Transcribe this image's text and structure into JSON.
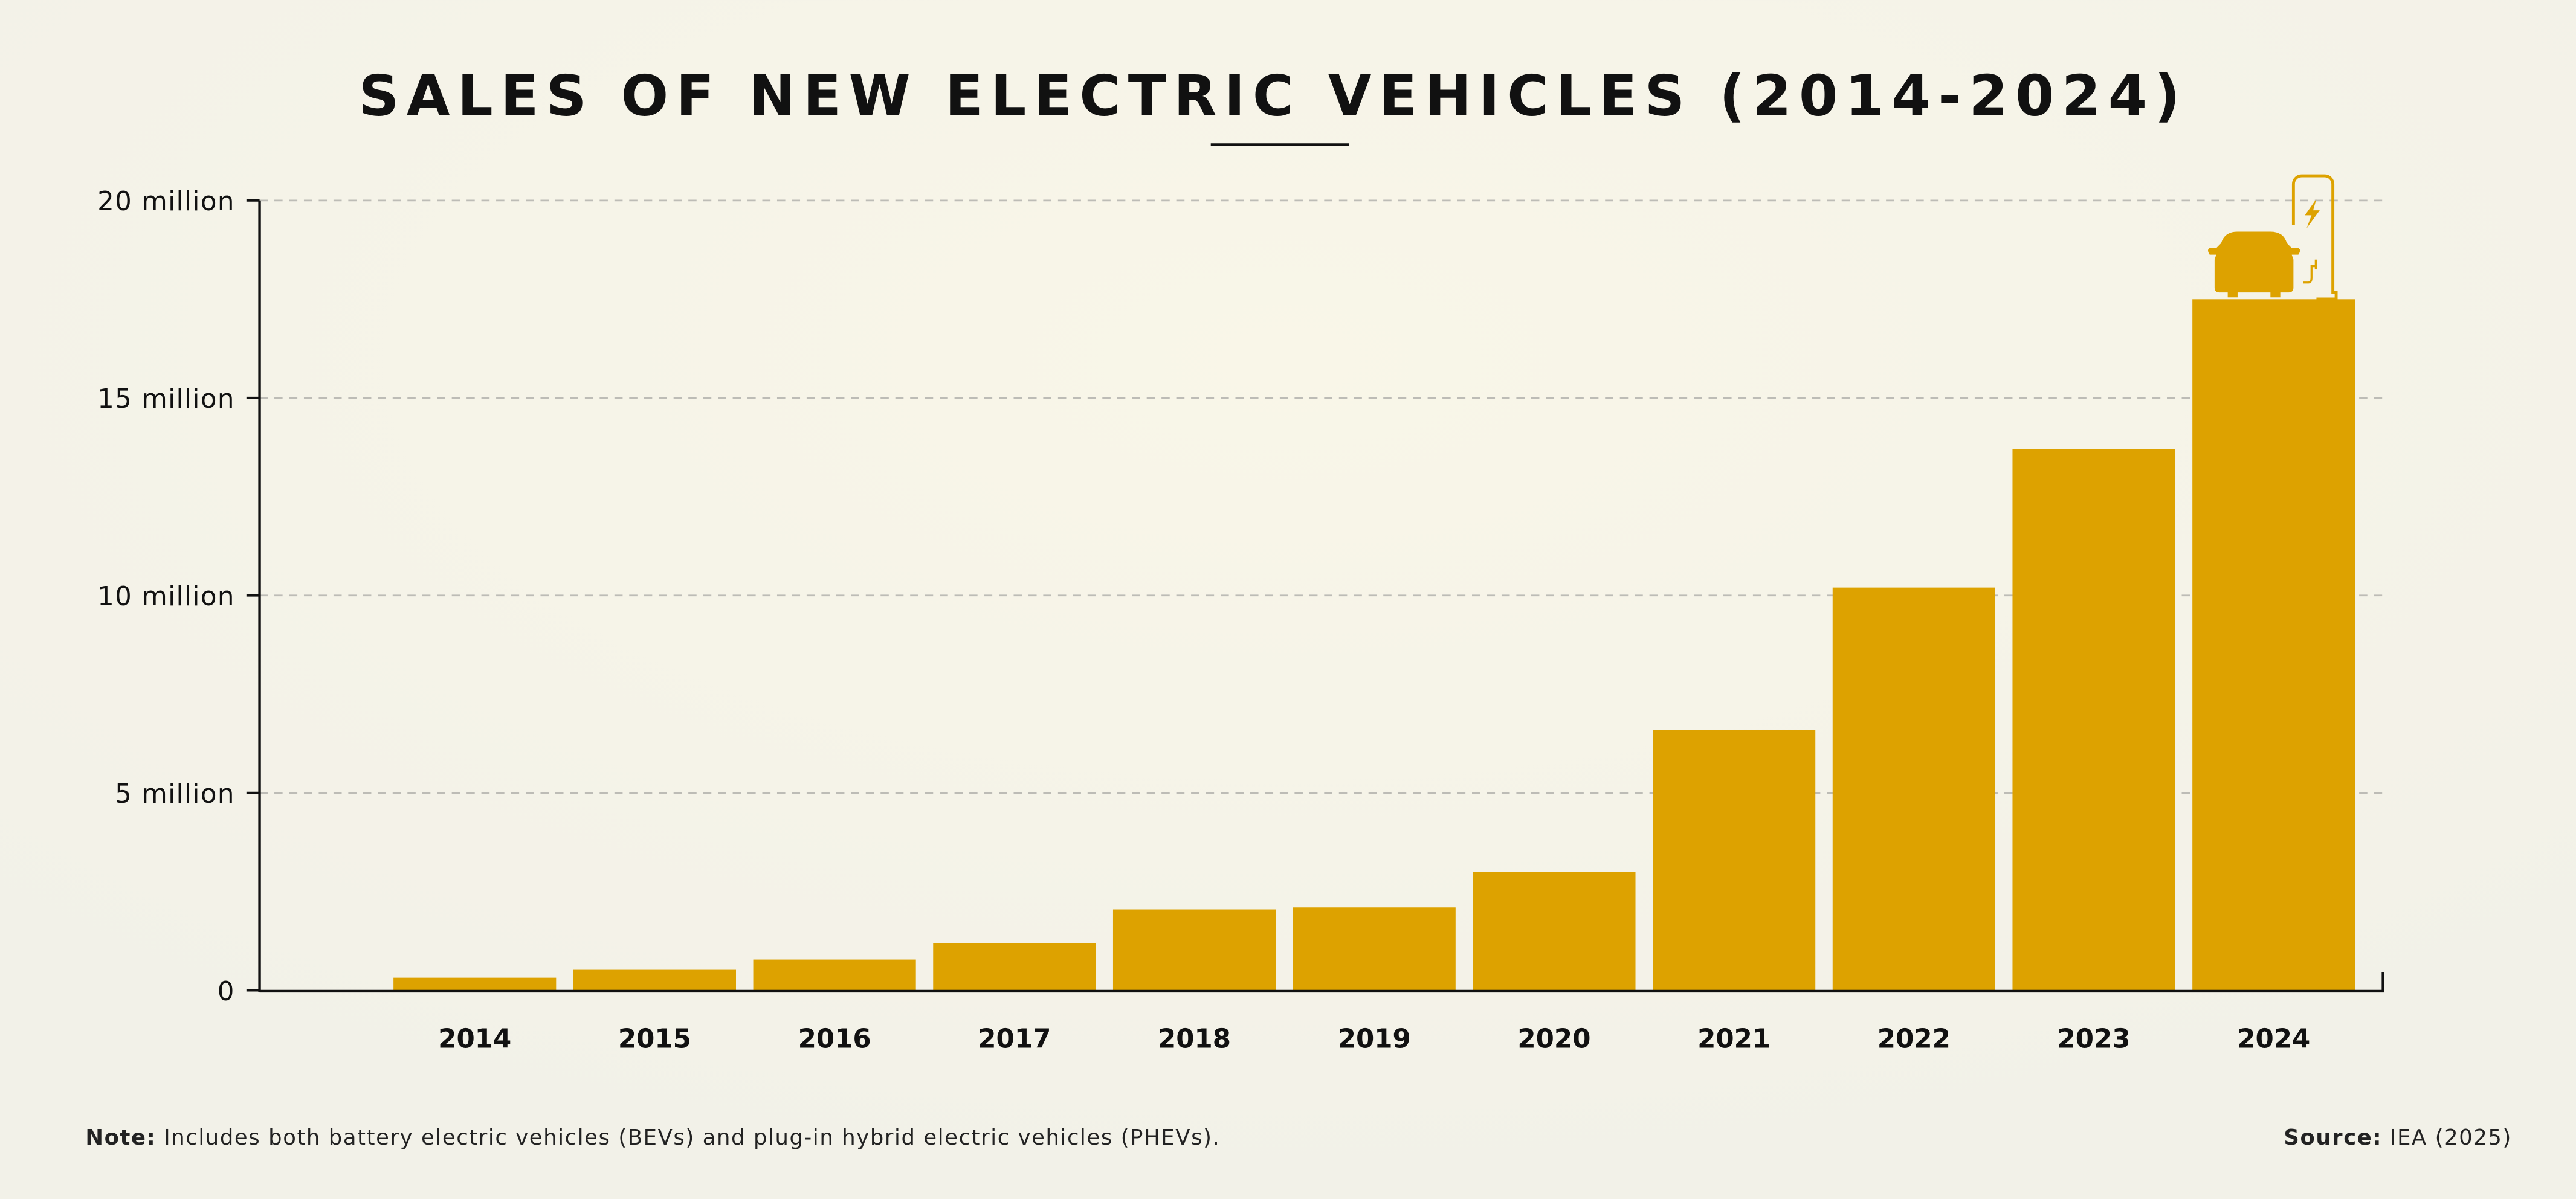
{
  "chart_data": {
    "type": "bar",
    "title": "SALES OF NEW ELECTRIC VEHICLES (2014-2024)",
    "categories": [
      "2014",
      "2015",
      "2016",
      "2017",
      "2018",
      "2019",
      "2020",
      "2021",
      "2022",
      "2023",
      "2024"
    ],
    "values": [
      0.32,
      0.52,
      0.78,
      1.2,
      2.05,
      2.1,
      3.0,
      6.6,
      10.2,
      13.7,
      17.5
    ],
    "unit": "million",
    "ylim": [
      0,
      20
    ],
    "yticks": [
      {
        "value": 0,
        "label": "0"
      },
      {
        "value": 5,
        "label": "5 million"
      },
      {
        "value": 10,
        "label": "10 million"
      },
      {
        "value": 15,
        "label": "15 million"
      },
      {
        "value": 20,
        "label": "20 million"
      }
    ],
    "grid": "horizontal dashed",
    "bar_color": "#dda200",
    "icon": "car-charging-station-icon"
  },
  "footer": {
    "note_label": "Note:",
    "note_text": " Includes both battery electric vehicles (BEVs) and plug-in hybrid electric vehicles (PHEVs).",
    "source_label": "Source:",
    "source_text": " IEA (2025)"
  }
}
